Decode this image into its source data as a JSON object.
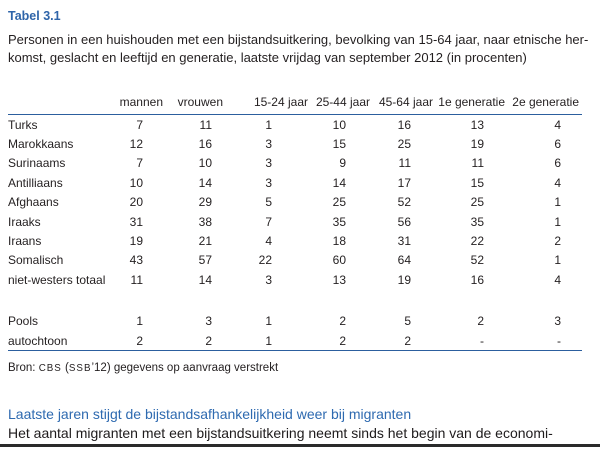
{
  "page": {
    "table_label": "Tabel 3.1",
    "caption_line1": "Personen in een huishouden met een bijstandsuitkering, bevolking van 15-64 jaar, naar etnische her-",
    "caption_line2": "komst, geslacht en leeftijd en generatie, laatste vrijdag van september 2012 (in procenten)"
  },
  "chart_data": {
    "type": "table",
    "title": "Tabel 3.1",
    "columns": [
      "mannen",
      "vrouwen",
      "15-24 jaar",
      "25-44 jaar",
      "45-64 jaar",
      "1e generatie",
      "2e generatie"
    ],
    "rows": [
      {
        "label": "Turks",
        "values": [
          "7",
          "11",
          "1",
          "10",
          "16",
          "13",
          "4"
        ]
      },
      {
        "label": "Marokkaans",
        "values": [
          "12",
          "16",
          "3",
          "15",
          "25",
          "19",
          "6"
        ]
      },
      {
        "label": "Surinaams",
        "values": [
          "7",
          "10",
          "3",
          "9",
          "11",
          "11",
          "6"
        ]
      },
      {
        "label": "Antilliaans",
        "values": [
          "10",
          "14",
          "3",
          "14",
          "17",
          "15",
          "4"
        ]
      },
      {
        "label": "Afghaans",
        "values": [
          "20",
          "29",
          "5",
          "25",
          "52",
          "25",
          "1"
        ]
      },
      {
        "label": "Iraaks",
        "values": [
          "31",
          "38",
          "7",
          "35",
          "56",
          "35",
          "1"
        ]
      },
      {
        "label": "Iraans",
        "values": [
          "19",
          "21",
          "4",
          "18",
          "31",
          "22",
          "2"
        ]
      },
      {
        "label": "Somalisch",
        "values": [
          "43",
          "57",
          "22",
          "60",
          "64",
          "52",
          "1"
        ]
      },
      {
        "label": "niet-westers totaal",
        "values": [
          "11",
          "14",
          "3",
          "13",
          "19",
          "16",
          "4"
        ]
      },
      {
        "spacer": true
      },
      {
        "label": "Pools",
        "values": [
          "1",
          "3",
          "1",
          "2",
          "5",
          "2",
          "3"
        ]
      },
      {
        "label": "autochtoon",
        "values": [
          "2",
          "2",
          "1",
          "2",
          "2",
          "-",
          "-"
        ]
      }
    ]
  },
  "source": {
    "prefix": "Bron: ",
    "abbr1": "CBS",
    "mid": " (",
    "abbr2": "SSB",
    "suffix": "’12) gegevens op aanvraag verstrekt"
  },
  "section": {
    "heading": "Laatste jaren stijgt de bijstandsafhankelijkheid weer bij migranten",
    "body_line": "Het aantal migranten met een bijstandsuitkering neemt sinds het begin van de economi-"
  },
  "colors": {
    "accent_blue": "#2e64a9",
    "rule_blue": "#2c5f9e",
    "text": "#231f20",
    "bottom_bar": "#2a2a2a"
  }
}
